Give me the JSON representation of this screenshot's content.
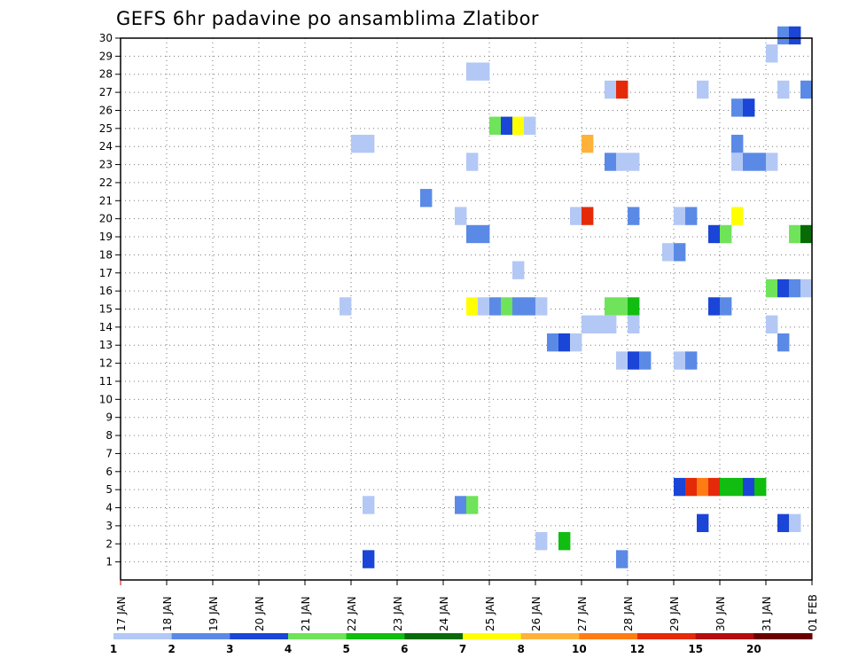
{
  "chart_data": {
    "type": "heatmap",
    "title": "GEFS 6hr padavine po ansamblima Zlatibor",
    "xlabel": "",
    "ylabel": "",
    "x_ticks": [
      "17 JAN",
      "18 JAN",
      "19 JAN",
      "20 JAN",
      "21 JAN",
      "22 JAN",
      "23 JAN",
      "24 JAN",
      "25 JAN",
      "26 JAN",
      "27 JAN",
      "28 JAN",
      "29 JAN",
      "30 JAN",
      "31 JAN",
      "01 FEB"
    ],
    "y_ticks": [
      1,
      2,
      3,
      4,
      5,
      6,
      7,
      8,
      9,
      10,
      11,
      12,
      13,
      14,
      15,
      16,
      17,
      18,
      19,
      20,
      21,
      22,
      23,
      24,
      25,
      26,
      27,
      28,
      29,
      30
    ],
    "xlim": [
      0,
      15
    ],
    "ylim": [
      0,
      30
    ],
    "step_days": 0.25,
    "grid": true,
    "colorbar": {
      "levels": [
        "1",
        "2",
        "3",
        "4",
        "5",
        "6",
        "7",
        "8",
        "10",
        "12",
        "15",
        "20"
      ],
      "colors": [
        "#b3c8f5",
        "#5b8ae6",
        "#1a45d6",
        "#6fe35a",
        "#10bd10",
        "#086b08",
        "#ffff00",
        "#ffb23a",
        "#ff7c14",
        "#e52a0a",
        "#b30e0e",
        "#6b0000"
      ]
    },
    "cells": [
      {
        "member": 30,
        "day": 14.25,
        "cls": 1
      },
      {
        "member": 30,
        "day": 14.5,
        "cls": 2
      },
      {
        "member": 29,
        "day": 14.0,
        "cls": 0
      },
      {
        "member": 28,
        "day": 7.5,
        "cls": 0
      },
      {
        "member": 28,
        "day": 7.75,
        "cls": 0
      },
      {
        "member": 27,
        "day": 10.5,
        "cls": 0
      },
      {
        "member": 27,
        "day": 10.75,
        "cls": 9
      },
      {
        "member": 27,
        "day": 12.5,
        "cls": 0
      },
      {
        "member": 27,
        "day": 14.25,
        "cls": 0
      },
      {
        "member": 27,
        "day": 14.75,
        "cls": 1
      },
      {
        "member": 26,
        "day": 13.25,
        "cls": 1
      },
      {
        "member": 26,
        "day": 13.5,
        "cls": 2
      },
      {
        "member": 25,
        "day": 8.0,
        "cls": 3
      },
      {
        "member": 25,
        "day": 8.25,
        "cls": 2
      },
      {
        "member": 25,
        "day": 8.5,
        "cls": 6
      },
      {
        "member": 25,
        "day": 8.75,
        "cls": 0
      },
      {
        "member": 24,
        "day": 5.0,
        "cls": 0
      },
      {
        "member": 24,
        "day": 5.25,
        "cls": 0
      },
      {
        "member": 24,
        "day": 10.0,
        "cls": 7
      },
      {
        "member": 24,
        "day": 13.25,
        "cls": 1
      },
      {
        "member": 23,
        "day": 7.5,
        "cls": 0
      },
      {
        "member": 23,
        "day": 10.5,
        "cls": 1
      },
      {
        "member": 23,
        "day": 10.75,
        "cls": 0
      },
      {
        "member": 23,
        "day": 11.0,
        "cls": 0
      },
      {
        "member": 23,
        "day": 13.25,
        "cls": 0
      },
      {
        "member": 23,
        "day": 13.5,
        "cls": 1
      },
      {
        "member": 23,
        "day": 13.75,
        "cls": 1
      },
      {
        "member": 23,
        "day": 14.0,
        "cls": 0
      },
      {
        "member": 21,
        "day": 6.5,
        "cls": 1
      },
      {
        "member": 20,
        "day": 7.25,
        "cls": 0
      },
      {
        "member": 20,
        "day": 9.75,
        "cls": 0
      },
      {
        "member": 20,
        "day": 10.0,
        "cls": 9
      },
      {
        "member": 20,
        "day": 11.0,
        "cls": 1
      },
      {
        "member": 20,
        "day": 12.0,
        "cls": 0
      },
      {
        "member": 20,
        "day": 12.25,
        "cls": 1
      },
      {
        "member": 20,
        "day": 13.25,
        "cls": 6
      },
      {
        "member": 19,
        "day": 7.5,
        "cls": 1
      },
      {
        "member": 19,
        "day": 7.75,
        "cls": 1
      },
      {
        "member": 19,
        "day": 12.75,
        "cls": 2
      },
      {
        "member": 19,
        "day": 13.0,
        "cls": 3
      },
      {
        "member": 19,
        "day": 14.5,
        "cls": 3
      },
      {
        "member": 19,
        "day": 14.75,
        "cls": 5
      },
      {
        "member": 18,
        "day": 11.75,
        "cls": 0
      },
      {
        "member": 18,
        "day": 12.0,
        "cls": 1
      },
      {
        "member": 17,
        "day": 8.5,
        "cls": 0
      },
      {
        "member": 16,
        "day": 14.0,
        "cls": 3
      },
      {
        "member": 16,
        "day": 14.25,
        "cls": 2
      },
      {
        "member": 16,
        "day": 14.5,
        "cls": 1
      },
      {
        "member": 16,
        "day": 14.75,
        "cls": 0
      },
      {
        "member": 15,
        "day": 4.75,
        "cls": 0
      },
      {
        "member": 15,
        "day": 7.5,
        "cls": 6
      },
      {
        "member": 15,
        "day": 7.75,
        "cls": 0
      },
      {
        "member": 15,
        "day": 8.0,
        "cls": 1
      },
      {
        "member": 15,
        "day": 8.25,
        "cls": 3
      },
      {
        "member": 15,
        "day": 8.5,
        "cls": 1
      },
      {
        "member": 15,
        "day": 8.75,
        "cls": 1
      },
      {
        "member": 15,
        "day": 9.0,
        "cls": 0
      },
      {
        "member": 15,
        "day": 10.5,
        "cls": 3
      },
      {
        "member": 15,
        "day": 10.75,
        "cls": 3
      },
      {
        "member": 15,
        "day": 11.0,
        "cls": 4
      },
      {
        "member": 15,
        "day": 12.75,
        "cls": 2
      },
      {
        "member": 15,
        "day": 13.0,
        "cls": 1
      },
      {
        "member": 14,
        "day": 10.0,
        "cls": 0
      },
      {
        "member": 14,
        "day": 10.25,
        "cls": 0
      },
      {
        "member": 14,
        "day": 10.5,
        "cls": 0
      },
      {
        "member": 14,
        "day": 11.0,
        "cls": 0
      },
      {
        "member": 14,
        "day": 14.0,
        "cls": 0
      },
      {
        "member": 13,
        "day": 9.25,
        "cls": 1
      },
      {
        "member": 13,
        "day": 9.5,
        "cls": 2
      },
      {
        "member": 13,
        "day": 9.75,
        "cls": 0
      },
      {
        "member": 13,
        "day": 14.25,
        "cls": 1
      },
      {
        "member": 12,
        "day": 10.75,
        "cls": 0
      },
      {
        "member": 12,
        "day": 11.0,
        "cls": 2
      },
      {
        "member": 12,
        "day": 11.25,
        "cls": 1
      },
      {
        "member": 12,
        "day": 12.0,
        "cls": 0
      },
      {
        "member": 12,
        "day": 12.25,
        "cls": 1
      },
      {
        "member": 5,
        "day": 12.0,
        "cls": 2
      },
      {
        "member": 5,
        "day": 12.25,
        "cls": 9
      },
      {
        "member": 5,
        "day": 12.5,
        "cls": 8
      },
      {
        "member": 5,
        "day": 12.75,
        "cls": 9
      },
      {
        "member": 5,
        "day": 13.0,
        "cls": 4
      },
      {
        "member": 5,
        "day": 13.25,
        "cls": 4
      },
      {
        "member": 5,
        "day": 13.5,
        "cls": 2
      },
      {
        "member": 5,
        "day": 13.75,
        "cls": 4
      },
      {
        "member": 4,
        "day": 5.25,
        "cls": 0
      },
      {
        "member": 4,
        "day": 7.25,
        "cls": 1
      },
      {
        "member": 4,
        "day": 7.5,
        "cls": 3
      },
      {
        "member": 3,
        "day": 12.5,
        "cls": 2
      },
      {
        "member": 3,
        "day": 14.25,
        "cls": 2
      },
      {
        "member": 3,
        "day": 14.5,
        "cls": 0
      },
      {
        "member": 2,
        "day": 9.0,
        "cls": 0
      },
      {
        "member": 2,
        "day": 9.5,
        "cls": 4
      },
      {
        "member": 1,
        "day": 5.25,
        "cls": 2
      },
      {
        "member": 1,
        "day": 10.75,
        "cls": 1
      }
    ]
  }
}
